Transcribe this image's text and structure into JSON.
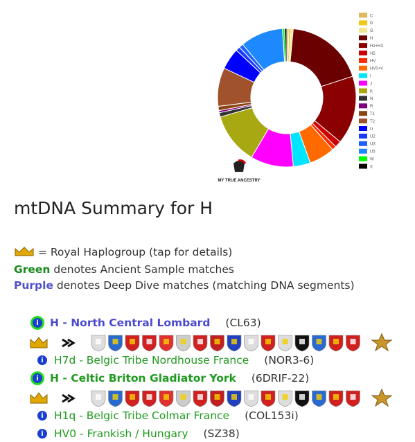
{
  "chart_data": {
    "type": "pie",
    "categories": [
      "C",
      "D",
      "G",
      "H",
      "H1+H3",
      "H5",
      "HV",
      "HV0+V",
      "I",
      "J",
      "K",
      "N",
      "R",
      "T1",
      "T2",
      "U",
      "U2",
      "U3",
      "U5",
      "W",
      "X"
    ],
    "values": [
      0.5,
      0.5,
      0.5,
      18.5,
      16,
      1.5,
      1,
      6,
      4,
      10,
      12,
      1,
      0.5,
      1,
      9,
      5,
      1,
      1,
      10,
      0.5,
      0.5
    ],
    "colors": [
      "#e0b860",
      "#f5c518",
      "#f0e68c",
      "#6b0000",
      "#8b0000",
      "#cc0000",
      "#ff2a00",
      "#ff6a00",
      "#00e5ff",
      "#ff00ff",
      "#a8a812",
      "#333333",
      "#800080",
      "#8b4513",
      "#a0522d",
      "#0000ff",
      "#1a3cff",
      "#2060ff",
      "#1e88ff",
      "#00ff00",
      "#000000"
    ],
    "logo": "MY TRUE ANCESTRY"
  },
  "heading": "mtDNA Summary for H",
  "notes": [
    {
      "text": "= Royal Haplogroup (tap for details)"
    },
    {
      "bold": "Green",
      "text": "denotes Ancient Sample matches"
    },
    {
      "bold": "Purple",
      "text": "denotes Deep Dive matches (matching DNA segments)"
    }
  ],
  "entries": [
    {
      "name": "H - North Central Lombard",
      "code": "(CL63)",
      "color": "#4a4ad0",
      "bold": true,
      "royal": true
    },
    {
      "name": "H7d - Belgic Tribe Nordhouse France",
      "code": "(NOR3-6)",
      "color": "#1f9a1f",
      "bold": false,
      "royal": false
    },
    {
      "name": "H - Celtic Briton Gladiator York",
      "code": "(6DRIF-22)",
      "color": "#1f9a1f",
      "bold": true,
      "royal": true
    },
    {
      "name": "H1q - Belgic Tribe Colmar France",
      "code": "(COL153i)",
      "color": "#1f9a1f",
      "bold": false,
      "royal": false
    },
    {
      "name": "HV0 - Frankish / Hungary",
      "code": "(SZ38)",
      "color": "#1f9a1f",
      "bold": false,
      "royal": false
    }
  ]
}
